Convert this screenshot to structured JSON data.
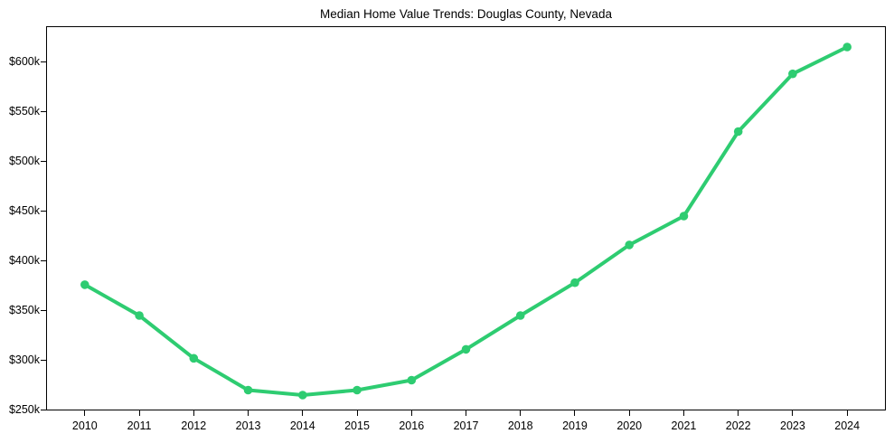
{
  "chart_data": {
    "type": "line",
    "title": "Median Home Value Trends: Douglas County, Nevada",
    "xlabel": "",
    "ylabel": "",
    "categories": [
      "2010",
      "2011",
      "2012",
      "2013",
      "2014",
      "2015",
      "2016",
      "2017",
      "2018",
      "2019",
      "2020",
      "2021",
      "2022",
      "2023",
      "2024"
    ],
    "values_usd_thousands": [
      376,
      345,
      302,
      270,
      265,
      270,
      280,
      311,
      345,
      378,
      416,
      445,
      530,
      588,
      615
    ],
    "yticks": {
      "values_usd_thousands": [
        250,
        300,
        350,
        400,
        450,
        500,
        550,
        600
      ],
      "labels": [
        "$250k",
        "$300k",
        "$350k",
        "$400k",
        "$450k",
        "$500k",
        "$550k",
        "$600k"
      ]
    },
    "ylim_usd_thousands": [
      250,
      635.5
    ],
    "grid": false,
    "legend": "none",
    "line_color": "#2ecc71",
    "marker": "circle",
    "background_color": "#ffffff",
    "text_color": "#000000"
  }
}
